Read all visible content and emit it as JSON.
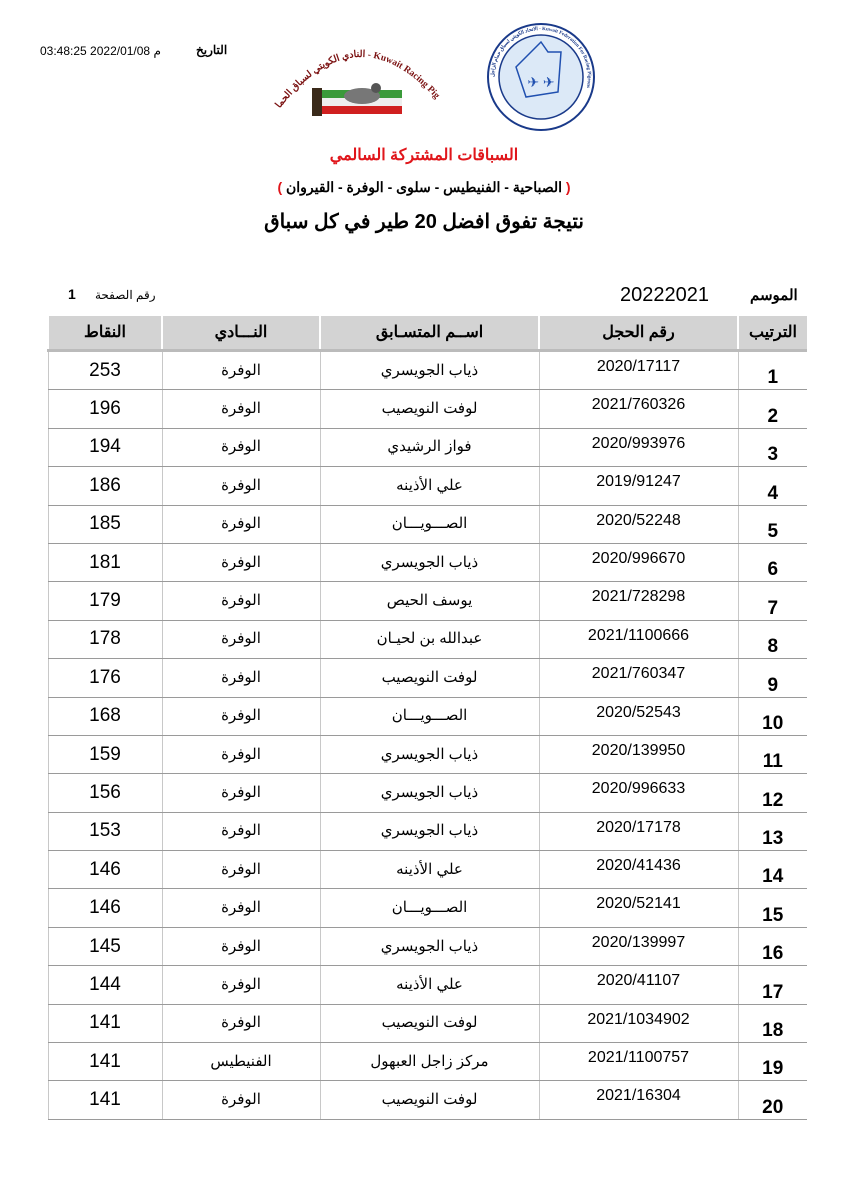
{
  "header": {
    "date_label": "التاريخ",
    "datetime": "03:48:25 2022/01/08 م",
    "club_logo_text": "النادي الكويتي لسباق الحمام الزاجل - Kuwait Racing Pigeon Club",
    "federation_logo_text": "الاتحاد الكويتي لسباق حمام الزاجل - Kuwait Federation For Racing Pigeons",
    "subtitle": "السباقات المشتركة السالمي",
    "clubs": "الصباحية - الفنيطيس - سلوى - الوفرة - القيروان",
    "title": "نتيجة تفوق افضل 20 طير في كل سباق",
    "season_label": "الموسم",
    "season": "20222021",
    "page_label": "رقم الصفحة",
    "page_number": "1",
    "colors": {
      "accent": "#e0161b",
      "header_bg": "#d3d3d3"
    }
  },
  "table": {
    "columns": [
      "الترتيب",
      "رقم الحجل",
      "اســم المتسـابق",
      "النـــادي",
      "النقاط"
    ],
    "rows": [
      [
        "1",
        "2020/17117",
        "ذياب الجويسري",
        "الوفرة",
        "253"
      ],
      [
        "2",
        "2021/760326",
        "لوفت النويصيب",
        "الوفرة",
        "196"
      ],
      [
        "3",
        "2020/993976",
        "فواز الرشيدي",
        "الوفرة",
        "194"
      ],
      [
        "4",
        "2019/91247",
        "علي الأذينه",
        "الوفرة",
        "186"
      ],
      [
        "5",
        "2020/52248",
        "الصـــويـــان",
        "الوفرة",
        "185"
      ],
      [
        "6",
        "2020/996670",
        "ذياب الجويسري",
        "الوفرة",
        "181"
      ],
      [
        "7",
        "2021/728298",
        "يوسف الحيص",
        "الوفرة",
        "179"
      ],
      [
        "8",
        "2021/1100666",
        "عبدالله بن لحيـان",
        "الوفرة",
        "178"
      ],
      [
        "9",
        "2021/760347",
        "لوفت النويصيب",
        "الوفرة",
        "176"
      ],
      [
        "10",
        "2020/52543",
        "الصـــويـــان",
        "الوفرة",
        "168"
      ],
      [
        "11",
        "2020/139950",
        "ذياب الجويسري",
        "الوفرة",
        "159"
      ],
      [
        "12",
        "2020/996633",
        "ذياب الجويسري",
        "الوفرة",
        "156"
      ],
      [
        "13",
        "2020/17178",
        "ذياب الجويسري",
        "الوفرة",
        "153"
      ],
      [
        "14",
        "2020/41436",
        "علي الأذينه",
        "الوفرة",
        "146"
      ],
      [
        "15",
        "2020/52141",
        "الصـــويـــان",
        "الوفرة",
        "146"
      ],
      [
        "16",
        "2020/139997",
        "ذياب الجويسري",
        "الوفرة",
        "145"
      ],
      [
        "17",
        "2020/41107",
        "علي الأذينه",
        "الوفرة",
        "144"
      ],
      [
        "18",
        "2021/1034902",
        "لوفت النويصيب",
        "الوفرة",
        "141"
      ],
      [
        "19",
        "2021/1100757",
        "مركز زاجل العبهول",
        "الفنيطيس",
        "141"
      ],
      [
        "20",
        "2021/16304",
        "لوفت النويصيب",
        "الوفرة",
        "141"
      ]
    ]
  }
}
